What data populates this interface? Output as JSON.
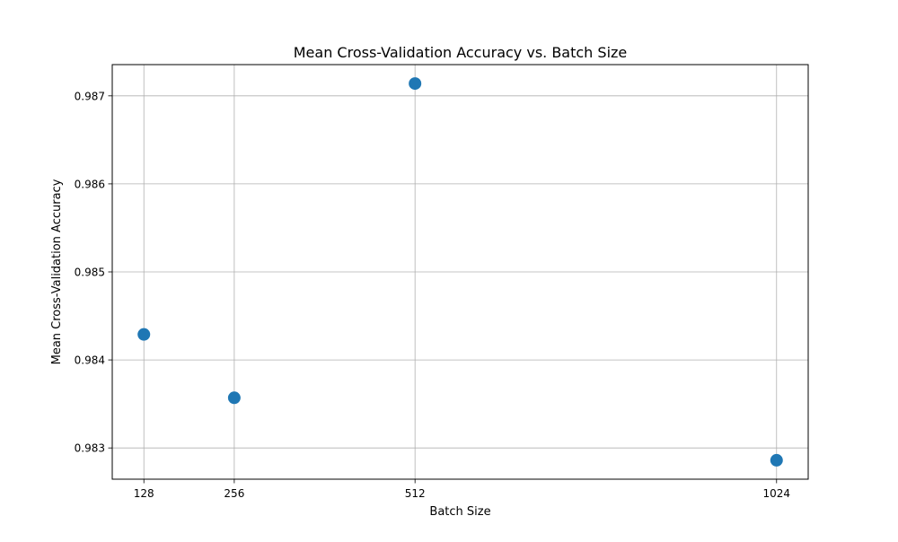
{
  "chart_data": {
    "type": "scatter",
    "title": "Mean Cross-Validation Accuracy vs. Batch Size",
    "xlabel": "Batch Size",
    "ylabel": "Mean Cross-Validation Accuracy",
    "x": [
      128,
      256,
      512,
      1024
    ],
    "y": [
      0.98429,
      0.98357,
      0.98714,
      0.98286
    ],
    "xticks": [
      "128",
      "256",
      "512",
      "1024"
    ],
    "yticks": [
      "0.983",
      "0.984",
      "0.985",
      "0.986",
      "0.987"
    ],
    "xlim": [
      83.2,
      1068.8
    ],
    "ylim": [
      0.982645,
      0.987355
    ],
    "grid": true,
    "marker_color": "#1f77b4"
  }
}
